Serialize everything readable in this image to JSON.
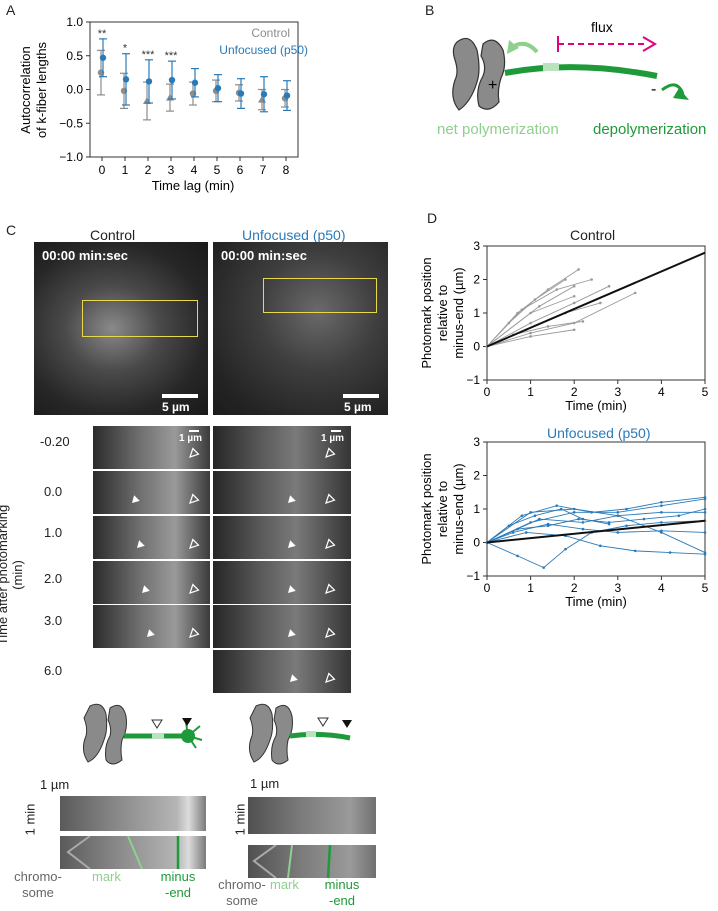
{
  "panel_labels": {
    "a": "A",
    "b": "B",
    "c": "C",
    "d": "D"
  },
  "panelA": {
    "ylabel": "Autocorrelation of k-fiber lengths",
    "xlabel": "Time lag (min)",
    "legend_control": "Control",
    "legend_unfocused": "Unfocused (p50)",
    "colors": {
      "control": "#8c8c8c",
      "unfocused": "#2a7ab8"
    },
    "chart_data": {
      "type": "scatter",
      "x": [
        0,
        1,
        2,
        3,
        4,
        5,
        6,
        7,
        8
      ],
      "series": [
        {
          "name": "Control",
          "values": [
            0.25,
            -0.02,
            -0.17,
            -0.12,
            -0.06,
            -0.02,
            -0.05,
            -0.15,
            -0.13
          ],
          "err": [
            0.33,
            0.26,
            0.28,
            0.2,
            0.17,
            0.16,
            0.12,
            0.15,
            0.13
          ]
        },
        {
          "name": "Unfocused (p50)",
          "values": [
            0.47,
            0.15,
            0.12,
            0.14,
            0.1,
            0.02,
            -0.06,
            -0.07,
            -0.09
          ],
          "err": [
            0.28,
            0.38,
            0.32,
            0.28,
            0.21,
            0.2,
            0.22,
            0.26,
            0.22
          ]
        }
      ],
      "stars": [
        "**",
        "*",
        "***",
        "***"
      ],
      "yticks": [
        "−1.0",
        "−0.5",
        "0.0",
        "0.5",
        "1.0"
      ],
      "xticks": [
        "0",
        "1",
        "2",
        "3",
        "4",
        "5",
        "6",
        "7",
        "8"
      ],
      "ylim": [
        -1.0,
        1.0
      ]
    }
  },
  "panelB": {
    "flux": "flux",
    "plus": "+",
    "minus": "-",
    "net": "net polymerization",
    "depol": "depolymerization"
  },
  "panelC": {
    "control_title": "Control",
    "unfocused_title": "Unfocused (p50)",
    "timestamp": "00:00 min:sec",
    "scalebar_big": "5 µm",
    "scalebar_small": "1 µm",
    "ylabel": "Time after photomarking (min)",
    "times": [
      "-0.20",
      "0.0",
      "1.0",
      "2.0",
      "3.0",
      "6.0"
    ],
    "kymo_scale_x": "1 µm",
    "kymo_scale_y": "1 min",
    "labels_left": {
      "chromo": "chromo-",
      "some": "some",
      "mark": "mark",
      "minus": "minus",
      "end": "-end"
    },
    "labels_right": {
      "chromo": "chromo-",
      "some": "some",
      "mark": "mark",
      "minus": "minus",
      "end": "-end"
    }
  },
  "panelD": {
    "top_title": "Control",
    "bottom_title": "Unfocused (p50)",
    "ylabel1": "Photomark position",
    "ylabel2": "relative to",
    "ylabel3": "minus-end (µm)",
    "xlabel": "Time (min)",
    "yticks": [
      "−1",
      "0",
      "1",
      "2",
      "3"
    ],
    "xticks": [
      "0",
      "1",
      "2",
      "3",
      "4",
      "5"
    ],
    "chart_data": [
      {
        "type": "line",
        "title": "Control",
        "x": [
          0,
          5
        ],
        "series": [
          {
            "values": [
              0,
              2.8
            ]
          }
        ],
        "xlim": [
          0,
          5
        ],
        "ylim": [
          -1,
          3
        ]
      },
      {
        "type": "line",
        "title": "Unfocused (p50)",
        "x": [
          0,
          5
        ],
        "series": [
          {
            "values": [
              0,
              0.65
            ]
          }
        ],
        "xlim": [
          0,
          5
        ],
        "ylim": [
          -1,
          3
        ]
      }
    ]
  }
}
